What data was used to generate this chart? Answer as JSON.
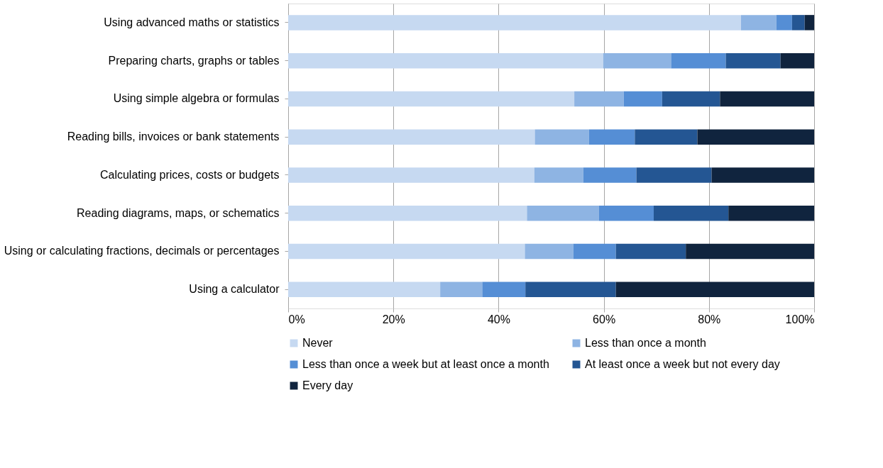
{
  "chart_data": {
    "type": "bar",
    "orientation": "horizontal",
    "stacked": true,
    "categories": [
      "Using advanced maths or statistics",
      "Preparing charts, graphs or tables",
      "Using simple algebra or formulas",
      "Reading bills, invoices or bank statements",
      "Calculating prices, costs or budgets",
      "Reading diagrams, maps, or schematics",
      "Using or calculating fractions, decimals or percentages",
      "Using a calculator"
    ],
    "series": [
      {
        "name": "Never",
        "color": "#c6d9f1",
        "values": [
          86.1,
          59.9,
          54.4,
          46.9,
          46.8,
          45.4,
          45.0,
          28.9
        ]
      },
      {
        "name": "Less than once a month",
        "color": "#8eb4e3",
        "values": [
          6.7,
          12.9,
          9.4,
          10.3,
          9.3,
          13.7,
          9.2,
          8.0
        ]
      },
      {
        "name": "Less than once a week but at least once a month",
        "color": "#558ed5",
        "values": [
          3.0,
          10.4,
          7.3,
          8.7,
          10.1,
          10.4,
          8.1,
          8.2
        ]
      },
      {
        "name": "At least once a week but not every day",
        "color": "#245693",
        "values": [
          2.4,
          10.4,
          11.0,
          11.9,
          14.3,
          14.2,
          13.3,
          17.2
        ]
      },
      {
        "name": "Every day",
        "color": "#10243e",
        "values": [
          1.8,
          6.4,
          17.9,
          22.2,
          19.5,
          16.3,
          24.4,
          37.7
        ]
      }
    ],
    "xlim": [
      0,
      100
    ],
    "xticks": [
      {
        "value": 0,
        "label": "0%"
      },
      {
        "value": 20,
        "label": "20%"
      },
      {
        "value": 40,
        "label": "40%"
      },
      {
        "value": 60,
        "label": "60%"
      },
      {
        "value": 80,
        "label": "80%"
      },
      {
        "value": 100,
        "label": "100%"
      }
    ],
    "grid": "x",
    "legend": "bottom"
  }
}
